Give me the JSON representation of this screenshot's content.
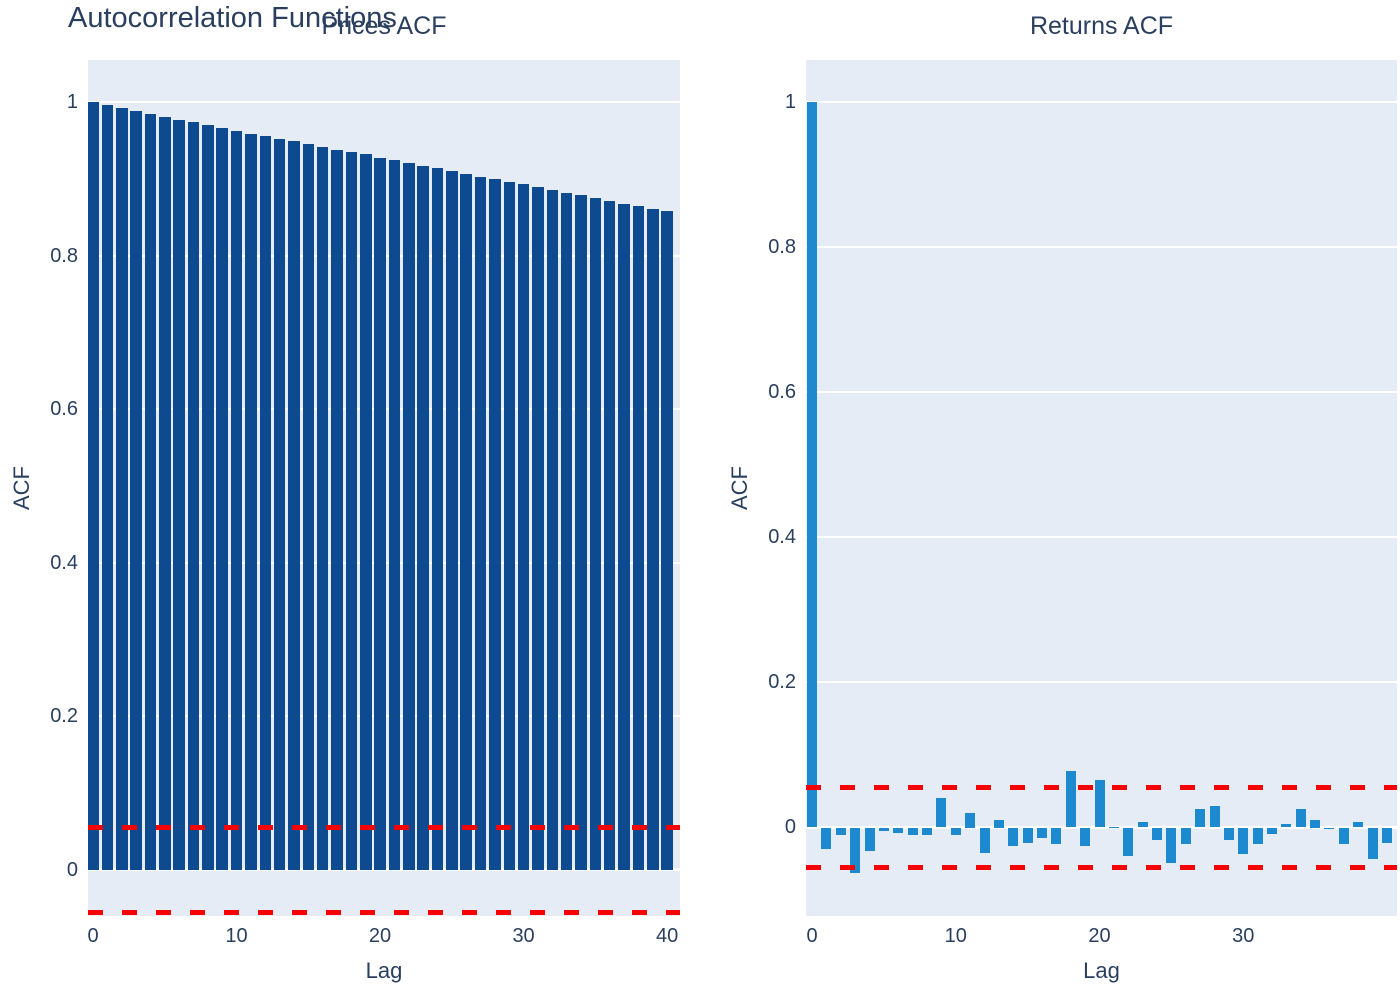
{
  "figure_title": "Autocorrelation Functions",
  "colors": {
    "background": "#ffffff",
    "plot_background": "#e5ecf6",
    "grid": "#ffffff",
    "font": "#2a3f5f",
    "prices_bar": "#0d4a8f",
    "returns_bar": "#1d8ad0",
    "confidence_line": "#f80000"
  },
  "chart_data": [
    {
      "type": "bar",
      "title": "Prices ACF",
      "xlabel": "Lag",
      "ylabel": "ACF",
      "x": [
        0,
        1,
        2,
        3,
        4,
        5,
        6,
        7,
        8,
        9,
        10,
        11,
        12,
        13,
        14,
        15,
        16,
        17,
        18,
        19,
        20,
        21,
        22,
        23,
        24,
        25,
        26,
        27,
        28,
        29,
        30,
        31,
        32,
        33,
        34,
        35,
        36,
        37,
        38,
        39,
        40
      ],
      "values": [
        1.0,
        0.996,
        0.992,
        0.988,
        0.985,
        0.981,
        0.977,
        0.974,
        0.97,
        0.966,
        0.963,
        0.959,
        0.956,
        0.952,
        0.949,
        0.945,
        0.942,
        0.938,
        0.935,
        0.932,
        0.928,
        0.925,
        0.921,
        0.917,
        0.914,
        0.91,
        0.907,
        0.903,
        0.9,
        0.896,
        0.893,
        0.889,
        0.886,
        0.882,
        0.879,
        0.875,
        0.872,
        0.868,
        0.865,
        0.861,
        0.858
      ],
      "bar_color": "#0d4a8f",
      "confidence_bounds": {
        "upper": 0.055,
        "lower": -0.055,
        "color": "#f80000",
        "style": "dash"
      },
      "xlim": [
        -0.35,
        40.9
      ],
      "ylim": [
        -0.06,
        1.055
      ],
      "xticks": [
        "0",
        "10",
        "20",
        "30",
        "40"
      ],
      "yticks": [
        "1",
        "0.8",
        "0.6",
        "0.4",
        "0.2",
        "0"
      ],
      "grid": "horizontal-only"
    },
    {
      "type": "bar",
      "title": "Returns ACF",
      "xlabel": "Lag",
      "ylabel": "ACF",
      "x": [
        0,
        1,
        2,
        3,
        4,
        5,
        6,
        7,
        8,
        9,
        10,
        11,
        12,
        13,
        14,
        15,
        16,
        17,
        18,
        19,
        20,
        21,
        22,
        23,
        24,
        25,
        26,
        27,
        28,
        29,
        30,
        31,
        32,
        33,
        34,
        35,
        36,
        37,
        38,
        39,
        40
      ],
      "values": [
        1.0,
        -0.03,
        -0.01,
        -0.062,
        -0.033,
        -0.005,
        -0.008,
        -0.01,
        -0.01,
        0.041,
        -0.01,
        0.02,
        -0.035,
        0.011,
        -0.025,
        -0.021,
        -0.014,
        -0.022,
        0.078,
        -0.025,
        0.065,
        0.001,
        -0.039,
        0.007,
        -0.017,
        -0.049,
        -0.022,
        0.025,
        0.03,
        -0.017,
        -0.036,
        -0.022,
        -0.009,
        0.005,
        0.026,
        0.011,
        -0.001,
        -0.023,
        0.007,
        -0.043,
        -0.021
      ],
      "bar_color": "#1d8ad0",
      "confidence_bounds": {
        "upper": 0.055,
        "lower": -0.055,
        "color": "#f80000",
        "style": "dash"
      },
      "xlim": [
        -0.42,
        40.7
      ],
      "ylim": [
        -0.122,
        1.058
      ],
      "xticks": [
        "0",
        "10",
        "20",
        "30"
      ],
      "yticks": [
        "1",
        "0.8",
        "0.6",
        "0.4",
        "0.2",
        "0"
      ],
      "grid": "horizontal-only"
    }
  ]
}
